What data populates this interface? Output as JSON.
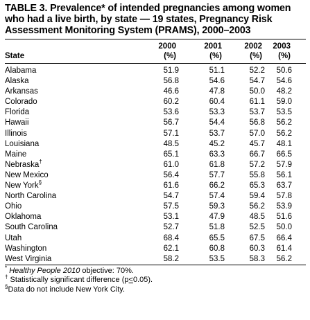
{
  "title": "TABLE 3. Prevalence* of intended pregnancies among women who had a live birth, by state — 19 states, Pregnancy Risk Assessment Monitoring System (PRAMS), 2000–2003",
  "header": {
    "state_label": "State",
    "years": [
      "2000",
      "2001",
      "2002",
      "2003"
    ],
    "unit": "(%)"
  },
  "rows": [
    {
      "state": "Alabama",
      "mark": "",
      "v": [
        "51.9",
        "51.1",
        "52.2",
        "50.6"
      ]
    },
    {
      "state": "Alaska",
      "mark": "",
      "v": [
        "56.8",
        "54.6",
        "54.7",
        "54.6"
      ]
    },
    {
      "state": "Arkansas",
      "mark": "",
      "v": [
        "46.6",
        "47.8",
        "50.0",
        "48.2"
      ]
    },
    {
      "state": "Colorado",
      "mark": "",
      "v": [
        "60.2",
        "60.4",
        "61.1",
        "59.0"
      ]
    },
    {
      "state": "Florida",
      "mark": "",
      "v": [
        "53.6",
        "53.3",
        "53.7",
        "53.5"
      ]
    },
    {
      "state": "Hawaii",
      "mark": "",
      "v": [
        "56.7",
        "54.4",
        "56.8",
        "56.2"
      ]
    },
    {
      "state": "Illinois",
      "mark": "",
      "v": [
        "57.1",
        "53.7",
        "57.0",
        "56.2"
      ]
    },
    {
      "state": "Louisiana",
      "mark": "",
      "v": [
        "48.5",
        "45.2",
        "45.7",
        "48.1"
      ]
    },
    {
      "state": "Maine",
      "mark": "",
      "v": [
        "65.1",
        "63.3",
        "66.7",
        "66.5"
      ]
    },
    {
      "state": "Nebraska",
      "mark": "†",
      "v": [
        "61.0",
        "61.8",
        "57.2",
        "57.9"
      ]
    },
    {
      "state": "New Mexico",
      "mark": "",
      "v": [
        "56.4",
        "57.7",
        "55.8",
        "56.1"
      ]
    },
    {
      "state": "New York",
      "mark": "§",
      "v": [
        "61.6",
        "66.2",
        "65.3",
        "63.7"
      ]
    },
    {
      "state": "North Carolina",
      "mark": "",
      "v": [
        "54.7",
        "57.4",
        "59.4",
        "57.8"
      ]
    },
    {
      "state": "Ohio",
      "mark": "",
      "v": [
        "57.5",
        "59.3",
        "56.2",
        "53.9"
      ]
    },
    {
      "state": "Oklahoma",
      "mark": "",
      "v": [
        "53.1",
        "47.9",
        "48.5",
        "51.6"
      ]
    },
    {
      "state": "South Carolina",
      "mark": "",
      "v": [
        "52.7",
        "51.8",
        "52.5",
        "50.0"
      ]
    },
    {
      "state": "Utah",
      "mark": "",
      "v": [
        "68.4",
        "65.5",
        "67.5",
        "66.4"
      ]
    },
    {
      "state": "Washington",
      "mark": "",
      "v": [
        "62.1",
        "60.8",
        "60.3",
        "61.4"
      ]
    },
    {
      "state": "West Virginia",
      "mark": "",
      "v": [
        "58.2",
        "53.5",
        "58.3",
        "56.2"
      ]
    }
  ],
  "footnotes": {
    "f1_mark": "*",
    "f1_italic": "Healthy People 2010",
    "f1_text": " objective: 70%.",
    "f2_mark": "†",
    "f2_text_a": "Statistically significant difference (p",
    "f2_le": "<",
    "f2_text_b": "0.05).",
    "f3_mark": "§",
    "f3_text": "Data do not include New York City."
  }
}
